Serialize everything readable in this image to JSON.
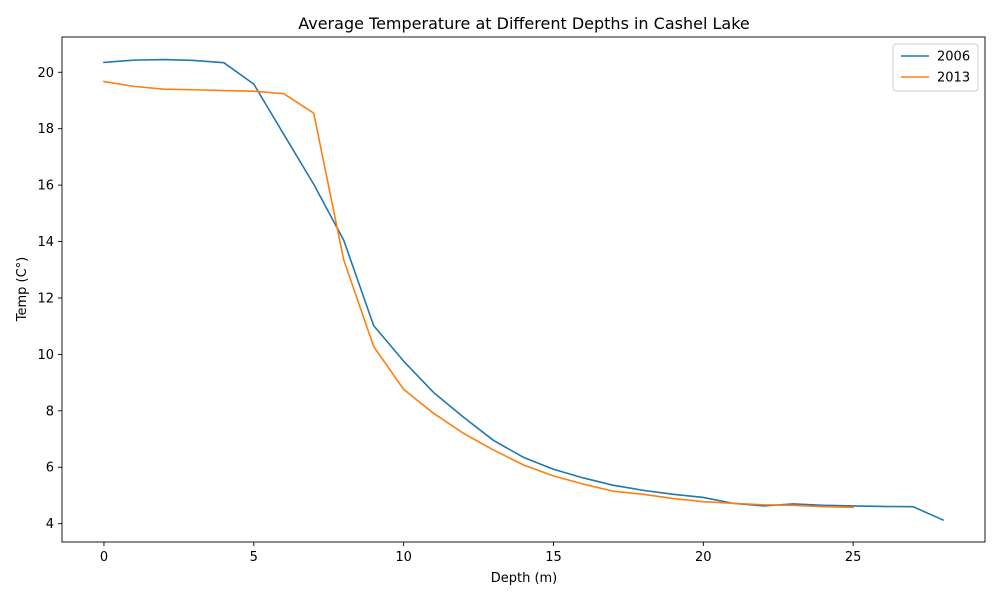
{
  "chart_data": {
    "type": "line",
    "title": "Average Temperature at Different Depths in Cashel Lake",
    "xlabel": "Depth (m)",
    "ylabel": "Temp (C°)",
    "xlim": [
      -1.4,
      29.4
    ],
    "ylim": [
      3.35,
      21.25
    ],
    "xticks": [
      0,
      5,
      10,
      15,
      20,
      25
    ],
    "yticks": [
      4,
      6,
      8,
      10,
      12,
      14,
      16,
      18,
      20
    ],
    "grid": false,
    "legend_position": "top-right",
    "series": [
      {
        "name": "2006",
        "color": "#1f77b4",
        "x": [
          0,
          1,
          2,
          3,
          4,
          5,
          6,
          7,
          8,
          9,
          10,
          11,
          12,
          13,
          14,
          15,
          16,
          17,
          18,
          19,
          20,
          21,
          22,
          23,
          24,
          25,
          26,
          27,
          28
        ],
        "y": [
          20.35,
          20.43,
          20.45,
          20.42,
          20.34,
          19.58,
          17.8,
          16.03,
          14.05,
          11.02,
          9.76,
          8.65,
          7.77,
          6.95,
          6.35,
          5.93,
          5.62,
          5.36,
          5.18,
          5.04,
          4.93,
          4.72,
          4.63,
          4.7,
          4.65,
          4.63,
          4.61,
          4.6,
          4.13
        ]
      },
      {
        "name": "2013",
        "color": "#ff7f0e",
        "x": [
          0,
          1,
          2,
          3,
          4,
          5,
          6,
          7,
          8,
          9,
          10,
          11,
          12,
          13,
          14,
          15,
          16,
          17,
          18,
          19,
          20,
          21,
          22,
          23,
          24,
          25
        ],
        "y": [
          19.67,
          19.5,
          19.4,
          19.38,
          19.35,
          19.33,
          19.24,
          18.55,
          13.35,
          10.28,
          8.76,
          7.91,
          7.2,
          6.61,
          6.08,
          5.69,
          5.4,
          5.15,
          5.04,
          4.89,
          4.78,
          4.72,
          4.67,
          4.65,
          4.6,
          4.58
        ]
      }
    ]
  }
}
